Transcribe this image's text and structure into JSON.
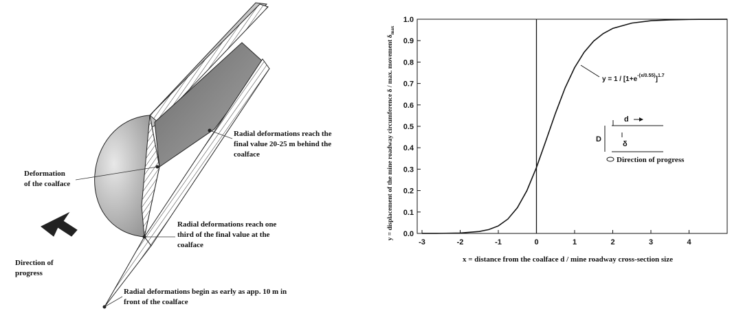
{
  "diagram": {
    "labels": [
      {
        "lines": [
          "Radial deformations reach the",
          "final value 20-25 m behind the",
          "coalface"
        ]
      },
      {
        "lines": [
          "Deformation",
          "of the coalface"
        ]
      },
      {
        "lines": [
          "Radial deformations reach one",
          "third of the final value at the",
          "coalface"
        ]
      },
      {
        "lines": [
          "Direction of",
          "progress"
        ]
      },
      {
        "lines": [
          "Radial deformations begin as early as app. 10 m in",
          "front of the coalface"
        ]
      }
    ]
  },
  "chart_data": {
    "type": "line",
    "xlabel": "x = distance from the coalface d / mine roadway cross-section size",
    "ylabel": {
      "main": "y = displacement of the mine roadway circumference δ / max. movement δ",
      "sub": "max"
    },
    "x": [
      -3,
      -2.5,
      -2,
      -1.5,
      -1.25,
      -1,
      -0.75,
      -0.5,
      -0.25,
      0,
      0.25,
      0.5,
      0.75,
      1,
      1.25,
      1.5,
      1.75,
      2,
      2.5,
      3,
      3.5,
      4,
      4.5,
      5
    ],
    "series": [
      {
        "color": "#111111",
        "values": [
          0.0001,
          0.0004,
          0.002,
          0.009,
          0.018,
          0.035,
          0.067,
          0.12,
          0.2,
          0.308,
          0.434,
          0.562,
          0.679,
          0.774,
          0.846,
          0.898,
          0.933,
          0.957,
          0.982,
          0.993,
          0.997,
          0.999,
          0.9995,
          0.9998
        ]
      }
    ],
    "xlim": [
      -3,
      5
    ],
    "ylim": [
      0,
      1
    ],
    "xticks": [
      -3,
      -2,
      -1,
      0,
      1,
      2,
      3,
      4
    ],
    "yticks": [
      {
        "value": 0,
        "label": "0.0"
      },
      0.1,
      0.2,
      0.3,
      0.4,
      0.5,
      0.6,
      0.7,
      0.8,
      0.9,
      {
        "value": 1,
        "label": "1.0"
      }
    ],
    "formula": {
      "base": "y = 1 / [1+e",
      "exp": "-(x/0.55)",
      "close": "]",
      "power": "1.7"
    },
    "inset": {
      "d": "d",
      "D": "D",
      "delta": "δ",
      "direction": "Direction of progress"
    }
  }
}
